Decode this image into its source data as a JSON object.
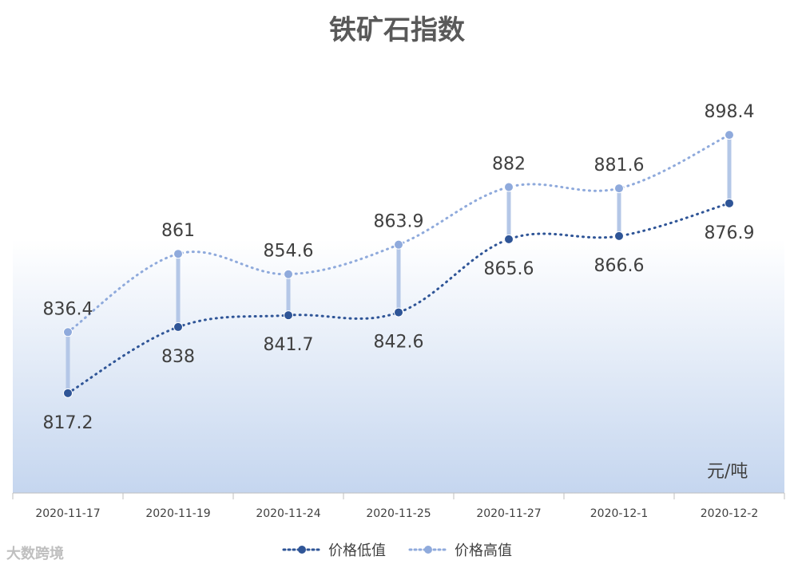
{
  "chart_data": {
    "type": "line",
    "title": "铁矿石指数",
    "unit_label": "元/吨",
    "categories": [
      "2020-11-17",
      "2020-11-19",
      "2020-11-24",
      "2020-11-25",
      "2020-11-27",
      "2020-12-1",
      "2020-12-2"
    ],
    "series": [
      {
        "name": "价格低值",
        "color": "#2f5597",
        "values": [
          817.2,
          838,
          841.7,
          842.6,
          865.6,
          866.6,
          876.9
        ]
      },
      {
        "name": "价格高值",
        "color": "#8faadc",
        "values": [
          836.4,
          861,
          854.6,
          863.9,
          882,
          881.6,
          898.4
        ]
      }
    ],
    "connector_color": "#b4c7e7",
    "background_gradient": [
      "#ffffff",
      "#c5d6ef"
    ],
    "ylim": [
      770,
      920
    ],
    "grid": false,
    "legend_position": "bottom"
  },
  "watermark": "大数跨境"
}
